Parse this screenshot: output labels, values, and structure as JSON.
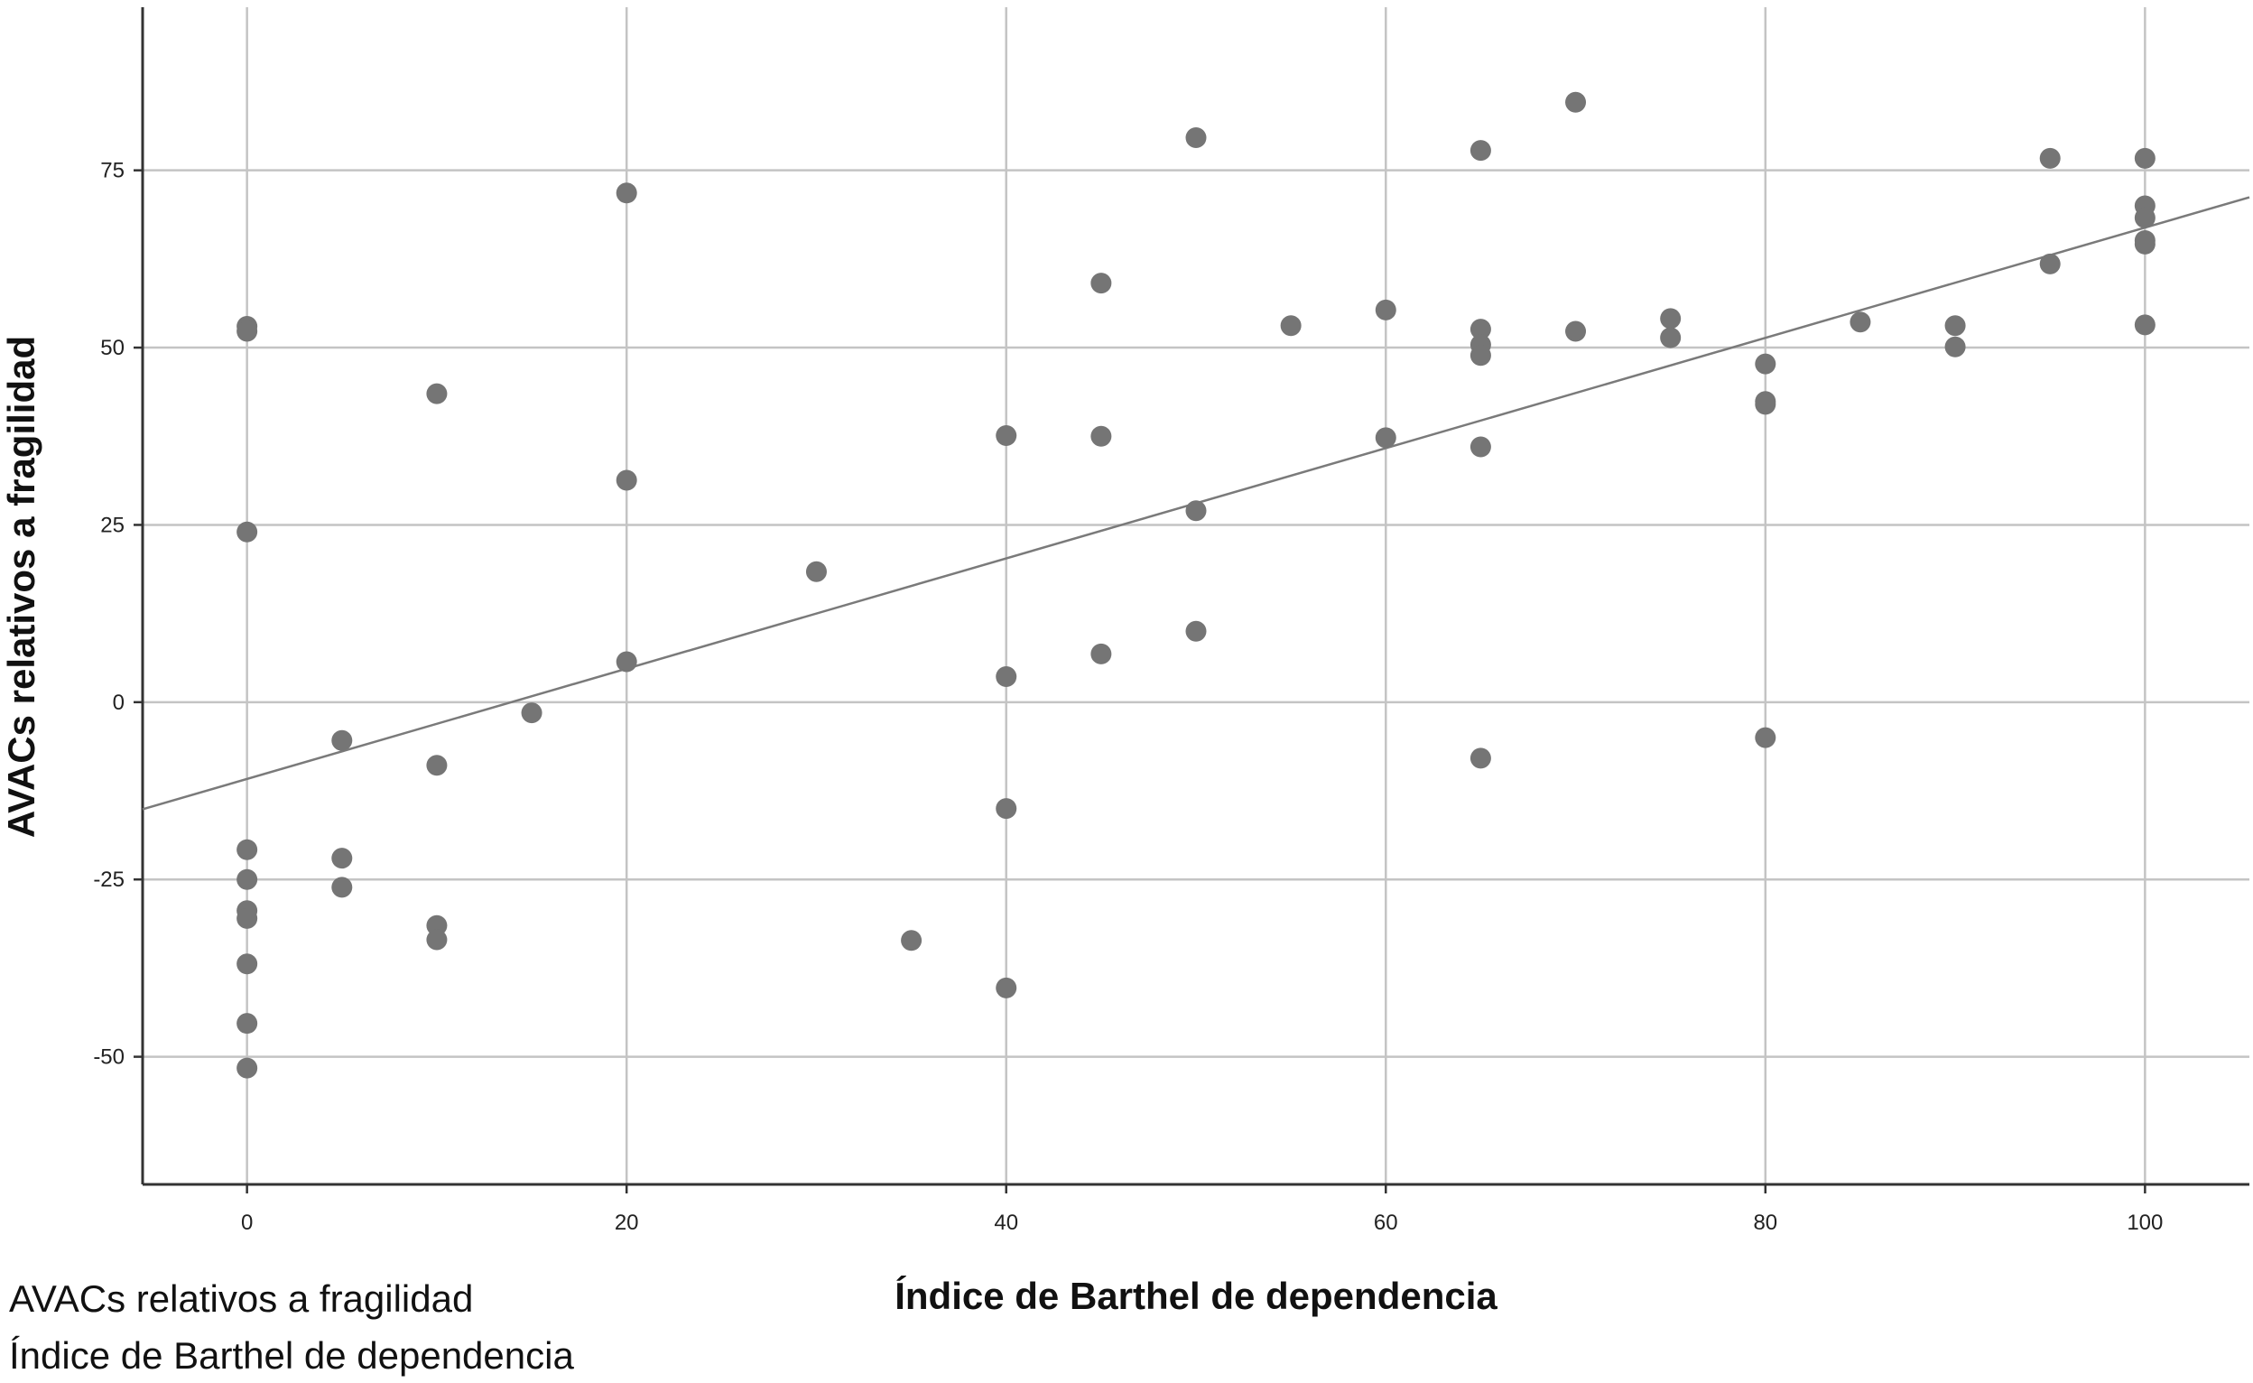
{
  "chart_data": {
    "type": "scatter",
    "title": "",
    "xlabel": "Índice de Barthel de dependencia",
    "ylabel": "AVACs relativos a fragilidad",
    "xlim": [
      -5.5,
      105.5
    ],
    "ylim": [
      -68,
      98
    ],
    "xticks": [
      0,
      20,
      40,
      60,
      80,
      100
    ],
    "yticks": [
      75,
      50,
      25,
      0,
      -25,
      -50
    ],
    "grid": true,
    "fit_line": {
      "x": [
        -5.5,
        105.5
      ],
      "y": [
        -15.1,
        71.2
      ]
    },
    "points": [
      {
        "x": 0,
        "y": 53
      },
      {
        "x": 0,
        "y": 52.3
      },
      {
        "x": 0,
        "y": 24
      },
      {
        "x": 0,
        "y": -20.8
      },
      {
        "x": 0,
        "y": -25
      },
      {
        "x": 0,
        "y": -29.4
      },
      {
        "x": 0,
        "y": -30.5
      },
      {
        "x": 0,
        "y": -36.9
      },
      {
        "x": 0,
        "y": -45.3
      },
      {
        "x": 0,
        "y": -51.6
      },
      {
        "x": 5,
        "y": -5.4
      },
      {
        "x": 5,
        "y": -22
      },
      {
        "x": 5,
        "y": -26.1
      },
      {
        "x": 10,
        "y": 43.5
      },
      {
        "x": 10,
        "y": -8.9
      },
      {
        "x": 10,
        "y": -31.5
      },
      {
        "x": 10,
        "y": -33.5
      },
      {
        "x": 15,
        "y": -1.5
      },
      {
        "x": 20,
        "y": 71.8
      },
      {
        "x": 20,
        "y": 31.3
      },
      {
        "x": 20,
        "y": 5.7
      },
      {
        "x": 30,
        "y": 18.4
      },
      {
        "x": 35,
        "y": -33.6
      },
      {
        "x": 40,
        "y": 37.6
      },
      {
        "x": 40,
        "y": 3.6
      },
      {
        "x": 40,
        "y": -15
      },
      {
        "x": 40,
        "y": -40.3
      },
      {
        "x": 45,
        "y": 59.1
      },
      {
        "x": 45,
        "y": 37.5
      },
      {
        "x": 45,
        "y": 6.8
      },
      {
        "x": 50,
        "y": 79.6
      },
      {
        "x": 50,
        "y": 27
      },
      {
        "x": 50,
        "y": 10
      },
      {
        "x": 55,
        "y": 53.1
      },
      {
        "x": 60,
        "y": 55.3
      },
      {
        "x": 60,
        "y": 37.3
      },
      {
        "x": 65,
        "y": 77.8
      },
      {
        "x": 65,
        "y": 52.6
      },
      {
        "x": 65,
        "y": 50.4
      },
      {
        "x": 65,
        "y": 48.9
      },
      {
        "x": 65,
        "y": 36
      },
      {
        "x": 65,
        "y": -7.9
      },
      {
        "x": 70,
        "y": 84.6
      },
      {
        "x": 70,
        "y": 52.3
      },
      {
        "x": 75,
        "y": 54.1
      },
      {
        "x": 75,
        "y": 51.4
      },
      {
        "x": 80,
        "y": 47.7
      },
      {
        "x": 80,
        "y": 42.4
      },
      {
        "x": 80,
        "y": 42
      },
      {
        "x": 80,
        "y": -5
      },
      {
        "x": 85,
        "y": 53.6
      },
      {
        "x": 90,
        "y": 53.1
      },
      {
        "x": 90,
        "y": 50.1
      },
      {
        "x": 95,
        "y": 76.7
      },
      {
        "x": 95,
        "y": 61.8
      },
      {
        "x": 100,
        "y": 76.7
      },
      {
        "x": 100,
        "y": 70
      },
      {
        "x": 100,
        "y": 68.3
      },
      {
        "x": 100,
        "y": 65.1
      },
      {
        "x": 100,
        "y": 64.6
      },
      {
        "x": 100,
        "y": 53.2
      }
    ]
  },
  "caption": {
    "line1": "AVACs relativos a fragilidad",
    "line2": "Índice de Barthel de dependencia"
  },
  "colors": {
    "grid": "#c4c4c4",
    "axis": "#333333",
    "point": "#757575",
    "fit": "#7a7a7a"
  }
}
